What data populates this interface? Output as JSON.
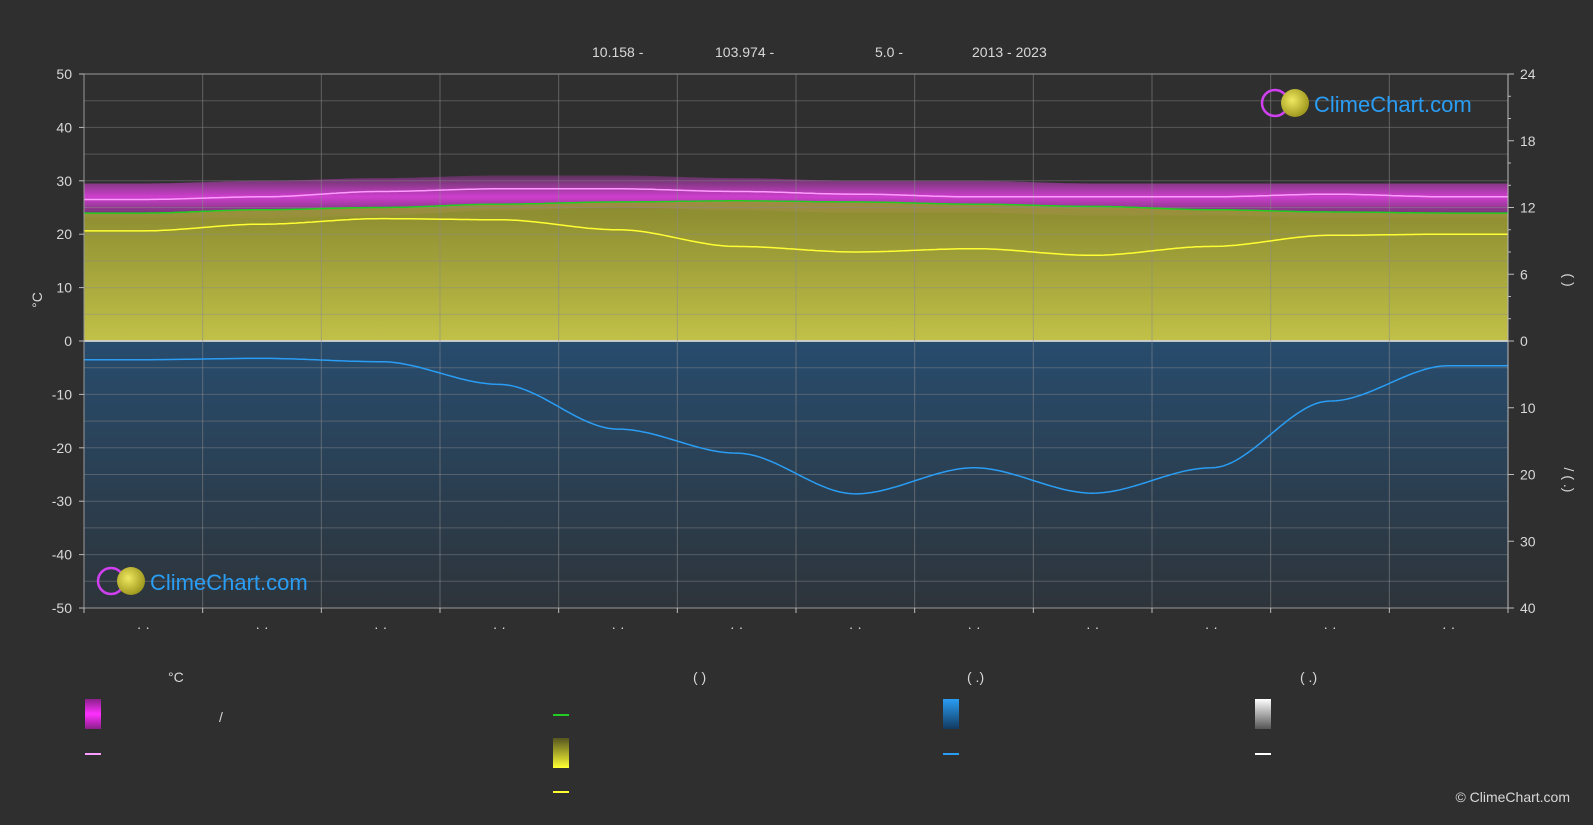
{
  "header": {
    "latitude": "10.158 -",
    "longitude": "103.974 -",
    "elevation": "5.0 -",
    "years": "2013 - 2023"
  },
  "axes": {
    "left_unit": "°C",
    "left_ticks": [
      "50",
      "40",
      "30",
      "20",
      "10",
      "0",
      "-10",
      "-20",
      "-30",
      "-40",
      "-50"
    ],
    "right_top_ticks": [
      "24",
      "18",
      "12",
      "6",
      "0"
    ],
    "right_bottom_ticks": [
      "10",
      "20",
      "30",
      "40"
    ],
    "right_top_label": "(      )",
    "right_bottom_label": "/      (  .)",
    "month_marks": [
      "· ·",
      "· ·",
      "· ·",
      "· ·",
      "· ·",
      "· ·",
      "· ·",
      "· ·",
      "· ·",
      "· ·",
      "· ·",
      "· ·"
    ]
  },
  "legend": {
    "col1_title": "°C",
    "col1_slash": "/",
    "col2_title": "(          )",
    "col3_title": "(   .)",
    "col4_title": "(   .)"
  },
  "logos": {
    "brand": "ClimeChart.com",
    "copyright": "© ClimeChart.com"
  },
  "colors": {
    "temp_band": "#e040e0",
    "temp_mean": "#ff9cff",
    "daylight": "#22cc22",
    "sunshine_band": "#b8b840",
    "sunshine_line": "#ffff33",
    "precip_band": "#1f6db5",
    "precip_line": "#2a9df4",
    "snow": "#ffffff",
    "brand": "#2a9df4"
  },
  "chart_data": {
    "type": "line",
    "x": [
      "01",
      "02",
      "03",
      "04",
      "05",
      "06",
      "07",
      "08",
      "09",
      "10",
      "11",
      "12"
    ],
    "ylim_left": [
      -50,
      50
    ],
    "ylim_right_hours": [
      0,
      24
    ],
    "ylim_right_precip_mm": [
      0,
      40
    ],
    "grid": true,
    "series": [
      {
        "key": "temp_max",
        "axis": "left",
        "values": [
          29.5,
          30,
          30.5,
          31,
          31,
          30.5,
          30,
          30,
          29.5,
          29.5,
          29.5,
          29.5
        ]
      },
      {
        "key": "temp_min",
        "axis": "left",
        "values": [
          23,
          23,
          23.5,
          24.5,
          25,
          24.5,
          24,
          24,
          23.5,
          23.5,
          23,
          23
        ]
      },
      {
        "key": "temp_mean",
        "axis": "left",
        "values": [
          26.5,
          27,
          28,
          28.5,
          28.5,
          28,
          27.5,
          27,
          27,
          27,
          27.5,
          27
        ]
      },
      {
        "key": "daylight",
        "axis": "right_hours",
        "values": [
          11.5,
          11.8,
          12.0,
          12.3,
          12.5,
          12.6,
          12.5,
          12.3,
          12.1,
          11.8,
          11.6,
          11.5
        ]
      },
      {
        "key": "sunshine",
        "axis": "right_hours",
        "values": [
          9.9,
          10.5,
          11.0,
          10.9,
          10.0,
          8.5,
          8.0,
          8.3,
          7.7,
          8.5,
          9.5,
          9.6
        ]
      },
      {
        "key": "precipitation",
        "axis": "right_precip_mm",
        "values": [
          2.8,
          2.6,
          3.1,
          6.5,
          13.2,
          16.8,
          22.9,
          19.0,
          22.8,
          19.0,
          9.0,
          3.7
        ]
      }
    ]
  }
}
